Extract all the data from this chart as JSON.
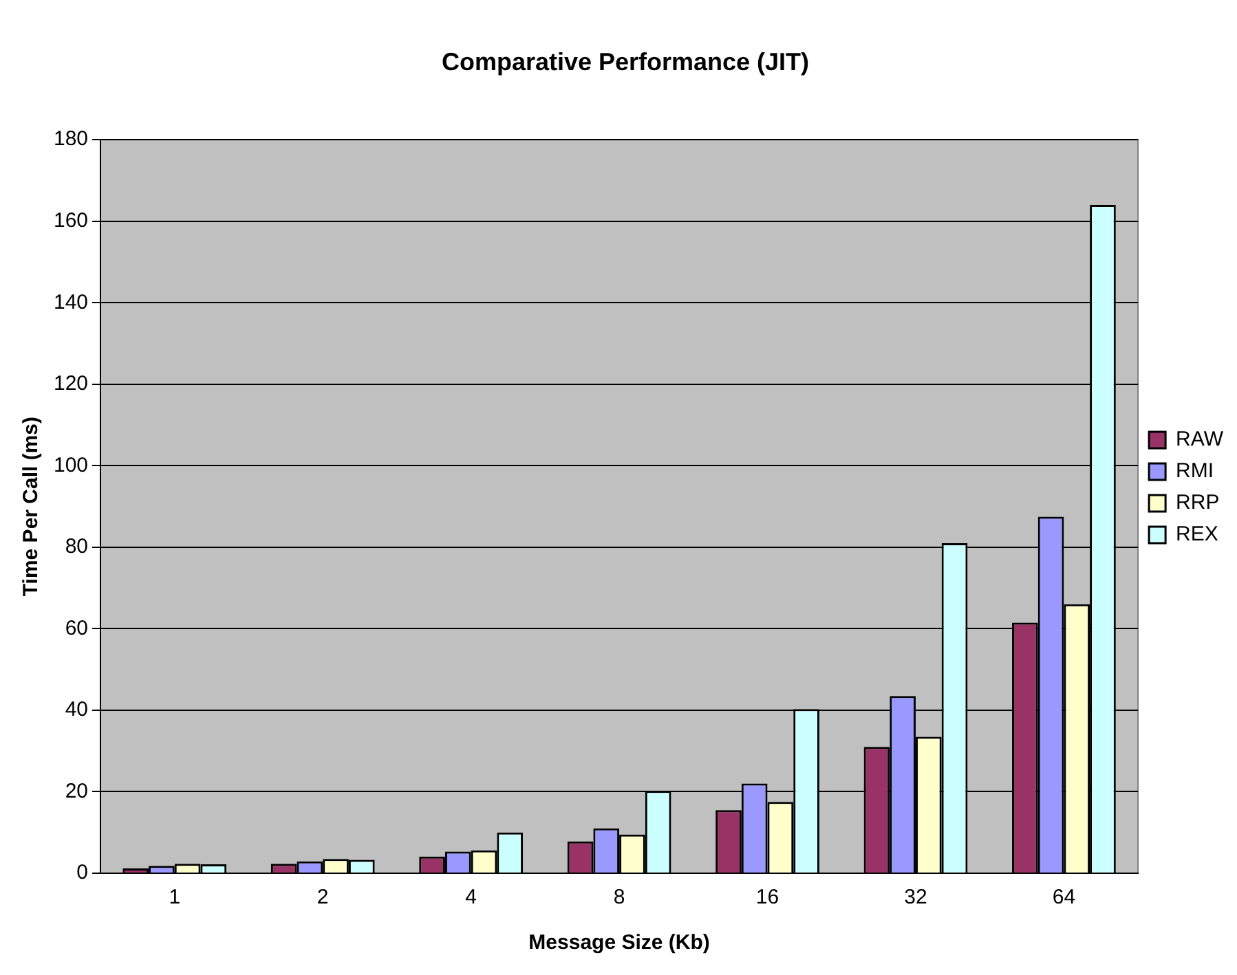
{
  "chart_data": {
    "type": "bar",
    "title": "Comparative Performance (JIT)",
    "xlabel": "Message Size (Kb)",
    "ylabel": "Time Per Call (ms)",
    "categories": [
      "1",
      "2",
      "4",
      "8",
      "16",
      "32",
      "64"
    ],
    "series": [
      {
        "name": "RAW",
        "color": "#993366",
        "values": [
          1.2,
          2.3,
          4.1,
          7.8,
          15.5,
          31,
          61.5
        ]
      },
      {
        "name": "RMI",
        "color": "#9999ff",
        "values": [
          1.8,
          2.9,
          5.3,
          11,
          22,
          43.5,
          87.5
        ]
      },
      {
        "name": "RRP",
        "color": "#ffffcc",
        "values": [
          2.3,
          3.5,
          5.6,
          9.5,
          17.5,
          33.5,
          66
        ]
      },
      {
        "name": "REX",
        "color": "#ccffff",
        "values": [
          2.2,
          3.3,
          10,
          20.2,
          40.3,
          81,
          164
        ]
      }
    ],
    "ylim": [
      0,
      180
    ],
    "yticks": [
      0,
      20,
      40,
      60,
      80,
      100,
      120,
      140,
      160,
      180
    ],
    "grid": "y",
    "legend": "right"
  }
}
